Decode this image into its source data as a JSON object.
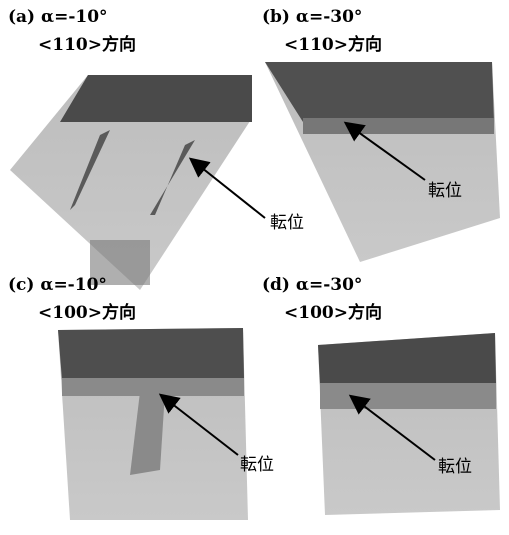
{
  "panels": [
    {
      "label": "(a) α=-10°",
      "direction": "<110>方向",
      "annotation": "転位"
    },
    {
      "label": "(b) α=-30°",
      "direction": "<110>方向",
      "annotation": "転位"
    },
    {
      "label": "(c) α=-10°",
      "direction": "<100>方向",
      "annotation": "転位"
    },
    {
      "label": "(d) α=-30°",
      "direction": "<100>方向",
      "annotation": "転位"
    }
  ]
}
